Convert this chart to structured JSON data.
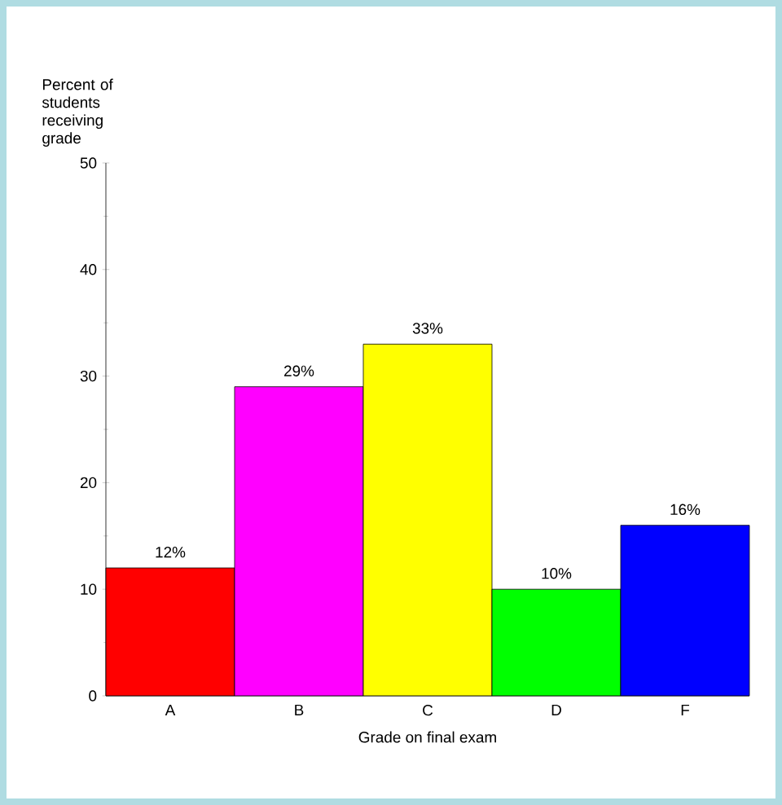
{
  "chart_data": {
    "type": "bar",
    "ylabel": "Percent of students receiving grade",
    "xlabel": "Grade on final exam",
    "categories": [
      "A",
      "B",
      "C",
      "D",
      "F"
    ],
    "values": [
      12,
      29,
      33,
      10,
      16
    ],
    "colors": [
      "#ff0000",
      "#ff00ff",
      "#ffff00",
      "#00ff00",
      "#0000ff"
    ],
    "value_labels": [
      "12%",
      "29%",
      "33%",
      "10%",
      "16%"
    ],
    "ylim": [
      0,
      50
    ],
    "yticks": [
      0,
      10,
      20,
      30,
      40,
      50
    ]
  }
}
